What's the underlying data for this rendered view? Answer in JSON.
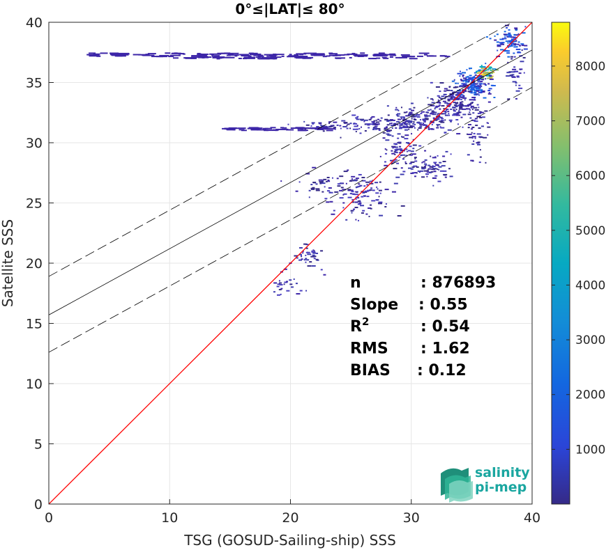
{
  "chart_data": {
    "type": "heatmap",
    "title": "0°≤|LAT|≤ 80°",
    "xlabel": "TSG (GOSUD-Sailing-ship) SSS",
    "ylabel": "Satellite SSS",
    "xlim": [
      0,
      40
    ],
    "ylim": [
      0,
      40
    ],
    "xticks": [
      "0",
      "10",
      "20",
      "30",
      "40"
    ],
    "yticks": [
      "0",
      "5",
      "10",
      "15",
      "20",
      "25",
      "30",
      "35",
      "40"
    ],
    "grid": true,
    "colorbar": {
      "range": [
        0,
        8800
      ],
      "ticks": [
        "1000",
        "2000",
        "3000",
        "4000",
        "5000",
        "6000",
        "7000",
        "8000"
      ],
      "colormap": "parula"
    },
    "lines": [
      {
        "kind": "one-to-one",
        "color": "#ff0000",
        "slope": 1.0,
        "intercept": 0.0
      },
      {
        "kind": "regression-fit",
        "color": "#000000",
        "slope": 0.55,
        "intercept": 15.7
      },
      {
        "kind": "fit-plus-2rms",
        "color": "#000000",
        "dash": true,
        "slope": 0.55,
        "intercept": 18.9
      },
      {
        "kind": "fit-minus-2rms",
        "color": "#000000",
        "dash": true,
        "slope": 0.55,
        "intercept": 12.6
      }
    ],
    "stats": [
      {
        "label": "n",
        "value": ": 876893"
      },
      {
        "label": "Slope",
        "value": ": 0.55"
      },
      {
        "label": "R",
        "sup": "2",
        "value": ": 0.54"
      },
      {
        "label": "RMS",
        "value": ": 1.62"
      },
      {
        "label": "BIAS",
        "value": ": 0.12"
      }
    ],
    "density_clusters": [
      {
        "x": 36.0,
        "y": 35.8,
        "sx": 0.7,
        "sy": 0.5,
        "n": 80,
        "level": "high"
      },
      {
        "x": 35.0,
        "y": 35.0,
        "sx": 1.2,
        "sy": 1.0,
        "n": 160,
        "level": "mid"
      },
      {
        "x": 33.5,
        "y": 33.5,
        "sx": 1.6,
        "sy": 1.2,
        "n": 180,
        "level": "low"
      },
      {
        "x": 38.0,
        "y": 38.5,
        "sx": 1.0,
        "sy": 1.0,
        "n": 90,
        "level": "mid"
      },
      {
        "x": 30.5,
        "y": 32.0,
        "sx": 2.2,
        "sy": 1.0,
        "n": 170,
        "level": "low"
      },
      {
        "x": 27.0,
        "y": 31.5,
        "sx": 2.5,
        "sy": 0.6,
        "n": 90,
        "level": "low"
      },
      {
        "x": 29.0,
        "y": 29.0,
        "sx": 1.2,
        "sy": 1.6,
        "n": 80,
        "level": "low"
      },
      {
        "x": 31.5,
        "y": 28.0,
        "sx": 1.3,
        "sy": 1.2,
        "n": 70,
        "level": "low"
      },
      {
        "x": 26.0,
        "y": 25.5,
        "sx": 2.0,
        "sy": 1.6,
        "n": 90,
        "level": "low"
      },
      {
        "x": 23.0,
        "y": 26.5,
        "sx": 3.0,
        "sy": 1.0,
        "n": 60,
        "level": "low"
      },
      {
        "x": 21.5,
        "y": 20.5,
        "sx": 1.0,
        "sy": 0.8,
        "n": 40,
        "level": "low"
      },
      {
        "x": 19.5,
        "y": 18.2,
        "sx": 1.2,
        "sy": 0.8,
        "n": 25,
        "level": "low"
      },
      {
        "x": 35.5,
        "y": 31.0,
        "sx": 0.8,
        "sy": 2.0,
        "n": 50,
        "level": "low"
      },
      {
        "x": 38.5,
        "y": 35.5,
        "sx": 0.6,
        "sy": 2.0,
        "n": 40,
        "level": "low"
      },
      {
        "x": 23.0,
        "y": 31.5,
        "sx": 2.0,
        "sy": 0.3,
        "n": 40,
        "level": "low"
      }
    ],
    "density_bands": [
      {
        "x0": 3.0,
        "x1": 33.0,
        "y": 37.35,
        "thick": 0.3,
        "n": 140
      },
      {
        "x0": 10.0,
        "x1": 30.0,
        "y": 37.1,
        "thick": 0.15,
        "n": 50
      },
      {
        "x0": 14.0,
        "x1": 23.0,
        "y": 31.2,
        "thick": 0.25,
        "n": 50
      }
    ]
  },
  "logo": {
    "line1": "salinity",
    "line2": "pi-mep"
  }
}
